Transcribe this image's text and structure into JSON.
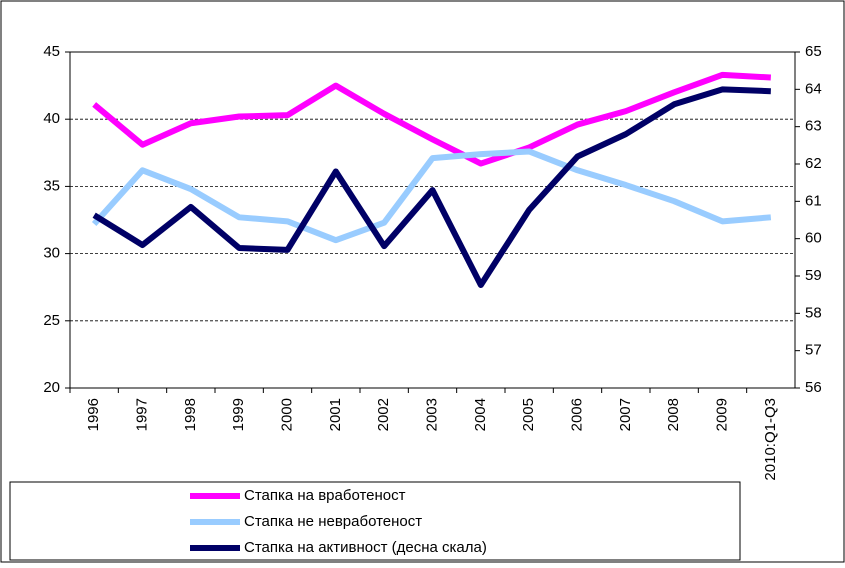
{
  "chart_data": {
    "type": "line",
    "categories": [
      "1996",
      "1997",
      "1998",
      "1999",
      "2000",
      "2001",
      "2002",
      "2003",
      "2004",
      "2005",
      "2006",
      "2007",
      "2008",
      "2009",
      "2010:Q1-Q3"
    ],
    "series": [
      {
        "name": "Стапка на вработеност",
        "color": "#ff00ff",
        "values": [
          41.1,
          38.1,
          39.7,
          40.2,
          40.3,
          42.5,
          40.4,
          38.5,
          36.7,
          37.9,
          39.6,
          40.6,
          42.0,
          43.3,
          43.1
        ]
      },
      {
        "name": "Стапка не невработеност",
        "color": "#99ccff",
        "values": [
          32.2,
          36.2,
          34.8,
          32.7,
          32.4,
          31.0,
          32.3,
          37.1,
          37.4,
          37.6,
          36.2,
          35.1,
          33.9,
          32.4,
          32.7
        ]
      },
      {
        "name": "Стапка на активност (десна скала)",
        "color": "#000066",
        "axis": "y2",
        "values": [
          60.63,
          59.83,
          60.85,
          59.75,
          59.7,
          61.8,
          59.8,
          61.3,
          58.76,
          60.77,
          62.2,
          62.8,
          63.6,
          64.0,
          63.95
        ]
      }
    ],
    "ylim": [
      20,
      45
    ],
    "yticks": [
      20,
      25,
      30,
      35,
      40,
      45
    ],
    "y2lim": [
      56,
      65
    ],
    "y2ticks": [
      56,
      57,
      58,
      59,
      60,
      61,
      62,
      63,
      64,
      65
    ],
    "grid": true,
    "legend": "bottom-left"
  }
}
